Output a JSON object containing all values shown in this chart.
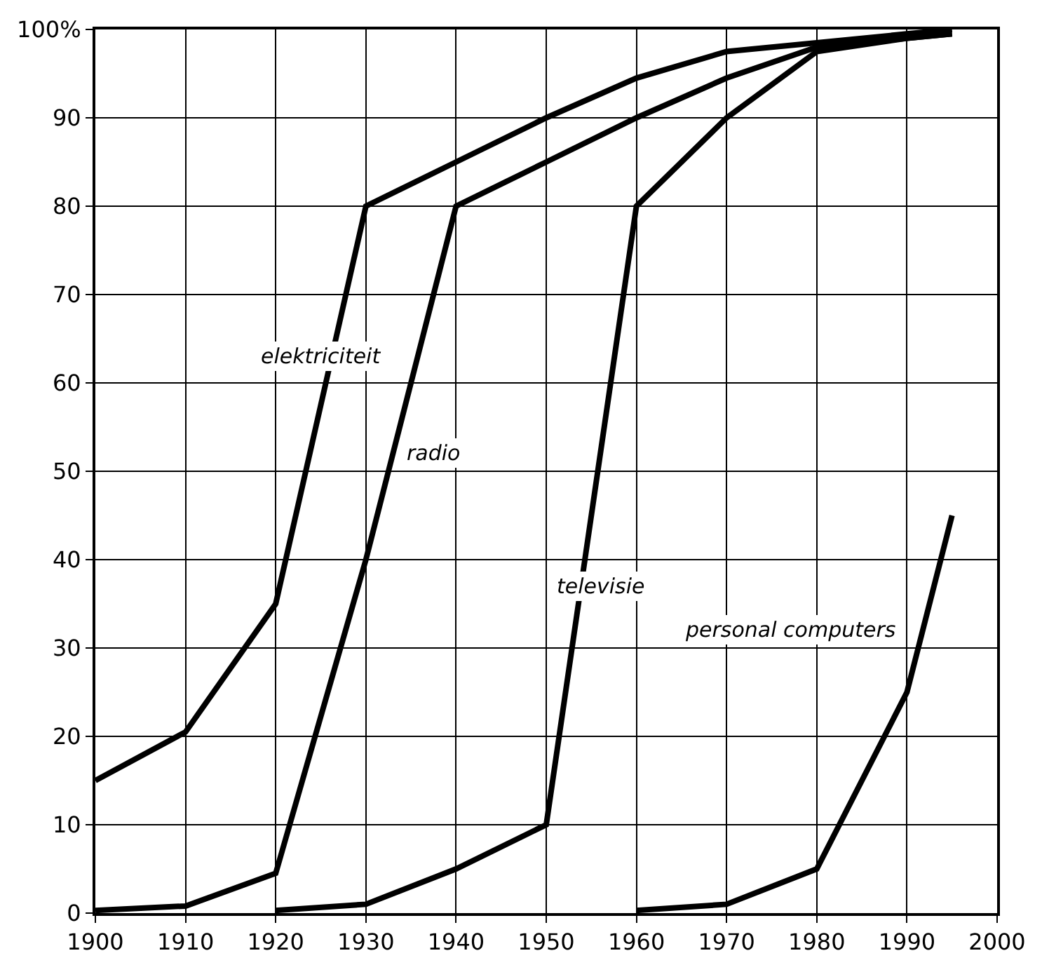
{
  "chart_data": {
    "type": "line",
    "xlim": [
      1900,
      2000
    ],
    "xticks": [
      1900,
      1910,
      1920,
      1930,
      1940,
      1950,
      1960,
      1970,
      1980,
      1990,
      2000
    ],
    "ylim": [
      0,
      100
    ],
    "yticks": [
      0,
      10,
      20,
      30,
      40,
      50,
      60,
      70,
      80,
      90,
      {
        "value": 100,
        "label": "100%"
      }
    ],
    "grid": true,
    "legend": false,
    "marker": "none",
    "line_style": "solid",
    "series": [
      {
        "name": "elektriciteit",
        "color": "#000000",
        "x": [
          1900,
          1910,
          1920,
          1930,
          1940,
          1950,
          1960,
          1970,
          1980,
          1990,
          1995
        ],
        "values": [
          15,
          20.5,
          35,
          80,
          85,
          90,
          94.5,
          97.5,
          98.5,
          99.5,
          100
        ]
      },
      {
        "name": "radio",
        "color": "#000000",
        "x": [
          1900,
          1910,
          1920,
          1930,
          1940,
          1950,
          1960,
          1970,
          1980,
          1990,
          1995
        ],
        "values": [
          0.3,
          0.8,
          4.5,
          40,
          80,
          85,
          90,
          94.5,
          98,
          99,
          99.5
        ]
      },
      {
        "name": "televisie",
        "color": "#000000",
        "x": [
          1920,
          1930,
          1940,
          1950,
          1960,
          1970,
          1980,
          1990,
          1995
        ],
        "values": [
          0.3,
          1,
          5,
          10,
          80,
          90,
          97.5,
          99,
          99.5
        ]
      },
      {
        "name": "personal computers",
        "color": "#000000",
        "x": [
          1960,
          1970,
          1980,
          1990,
          1995
        ],
        "values": [
          0.3,
          1,
          5,
          25,
          45
        ]
      }
    ]
  }
}
